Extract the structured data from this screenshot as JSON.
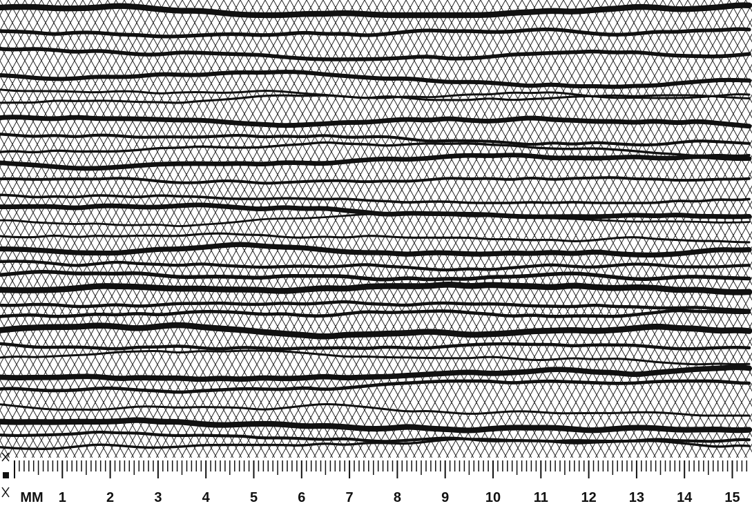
{
  "ruler": {
    "unit": "MM",
    "labels": [
      "1",
      "2",
      "3",
      "4",
      "5",
      "6",
      "7",
      "8",
      "9",
      "10",
      "11",
      "12",
      "13",
      "14",
      "15"
    ]
  },
  "colors": {
    "ink": "#111111",
    "paper": "#ffffff"
  }
}
